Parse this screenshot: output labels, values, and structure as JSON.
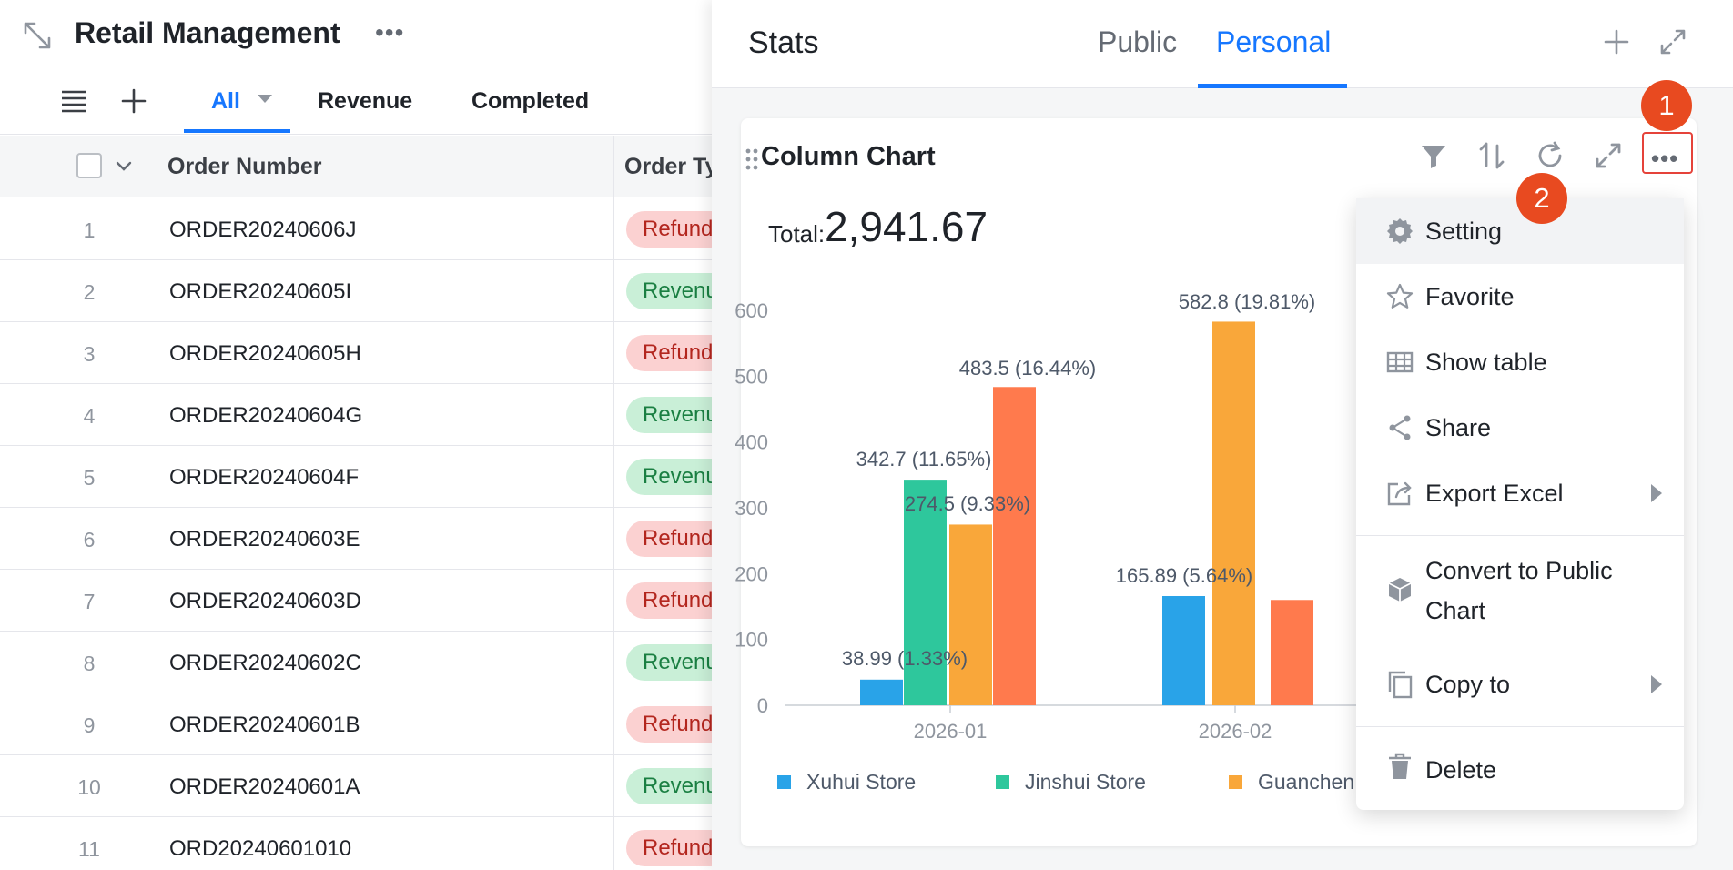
{
  "app": {
    "title": "Retail Management",
    "more_label": "•••"
  },
  "views": {
    "tabs": [
      {
        "label": "All",
        "active": true
      },
      {
        "label": "Revenue",
        "active": false
      },
      {
        "label": "Completed",
        "active": false
      }
    ]
  },
  "table": {
    "columns": [
      "Order Number",
      "Order Ty"
    ],
    "rows": [
      {
        "num": "1",
        "order": "ORDER20240606J",
        "type": "Refund",
        "tag": "refund"
      },
      {
        "num": "2",
        "order": "ORDER20240605I",
        "type": "Revenue",
        "tag": "revenue"
      },
      {
        "num": "3",
        "order": "ORDER20240605H",
        "type": "Refund",
        "tag": "refund"
      },
      {
        "num": "4",
        "order": "ORDER20240604G",
        "type": "Revenue",
        "tag": "revenue"
      },
      {
        "num": "5",
        "order": "ORDER20240604F",
        "type": "Revenue",
        "tag": "revenue"
      },
      {
        "num": "6",
        "order": "ORDER20240603E",
        "type": "Refund",
        "tag": "refund"
      },
      {
        "num": "7",
        "order": "ORDER20240603D",
        "type": "Refund",
        "tag": "refund"
      },
      {
        "num": "8",
        "order": "ORDER20240602C",
        "type": "Revenue",
        "tag": "revenue"
      },
      {
        "num": "9",
        "order": "ORDER20240601B",
        "type": "Refund",
        "tag": "refund"
      },
      {
        "num": "10",
        "order": "ORDER20240601A",
        "type": "Revenue",
        "tag": "revenue"
      },
      {
        "num": "11",
        "order": "ORD20240601010",
        "type": "Refund",
        "tag": "refund"
      }
    ]
  },
  "stats": {
    "title": "Stats",
    "tabs": [
      {
        "label": "Public",
        "active": false
      },
      {
        "label": "Personal",
        "active": true
      }
    ]
  },
  "card": {
    "title": "Column Chart",
    "total_label": "Total:",
    "total_value": "2,941.67"
  },
  "badges": {
    "first": "1",
    "second": "2"
  },
  "menu": {
    "items": [
      {
        "label": "Setting",
        "icon": "gear-icon"
      },
      {
        "label": "Favorite",
        "icon": "star-icon"
      },
      {
        "label": "Show table",
        "icon": "table-icon"
      },
      {
        "label": "Share",
        "icon": "share-icon"
      },
      {
        "label": "Export Excel",
        "icon": "export-icon",
        "submenu": true
      },
      {
        "label": "Convert to Public",
        "label2": "Chart",
        "icon": "cube-icon"
      },
      {
        "label": "Copy to",
        "icon": "copy-icon",
        "submenu": true
      },
      {
        "label": "Delete",
        "icon": "trash-icon"
      }
    ]
  },
  "colors": {
    "accent": "#1677ff",
    "badge": "#e84a20",
    "xuhui": "#29a3e8",
    "jinshui": "#2ec79c",
    "guanchen": "#f9a73a",
    "fourth": "#ff7a4d"
  },
  "chart_data": {
    "type": "bar",
    "categories": [
      "2026-01",
      "2026-02"
    ],
    "yticks": [
      0,
      100,
      200,
      300,
      400,
      500,
      600
    ],
    "ylim": [
      0,
      600
    ],
    "series": [
      {
        "name": "Xuhui Store",
        "values": [
          38.99,
          165.89
        ],
        "labels": [
          "38.99 (1.33%)",
          "165.89 (5.64%)"
        ],
        "color": "#29a3e8"
      },
      {
        "name": "Jinshui Store",
        "values": [
          342.7,
          null
        ],
        "labels": [
          "342.7 (11.65%)",
          ""
        ],
        "color": "#2ec79c"
      },
      {
        "name": "Guanchen",
        "values": [
          274.5,
          582.8
        ],
        "labels": [
          "274.5 (9.33%)",
          "582.8 (19.81%)"
        ],
        "color": "#f9a73a"
      },
      {
        "values": [
          483.5,
          160
        ],
        "labels": [
          "483.5 (16.44%)",
          ""
        ],
        "color": "#ff7a4d"
      }
    ],
    "legend": [
      "Xuhui Store",
      "Jinshui Store",
      "Guanchen"
    ]
  }
}
